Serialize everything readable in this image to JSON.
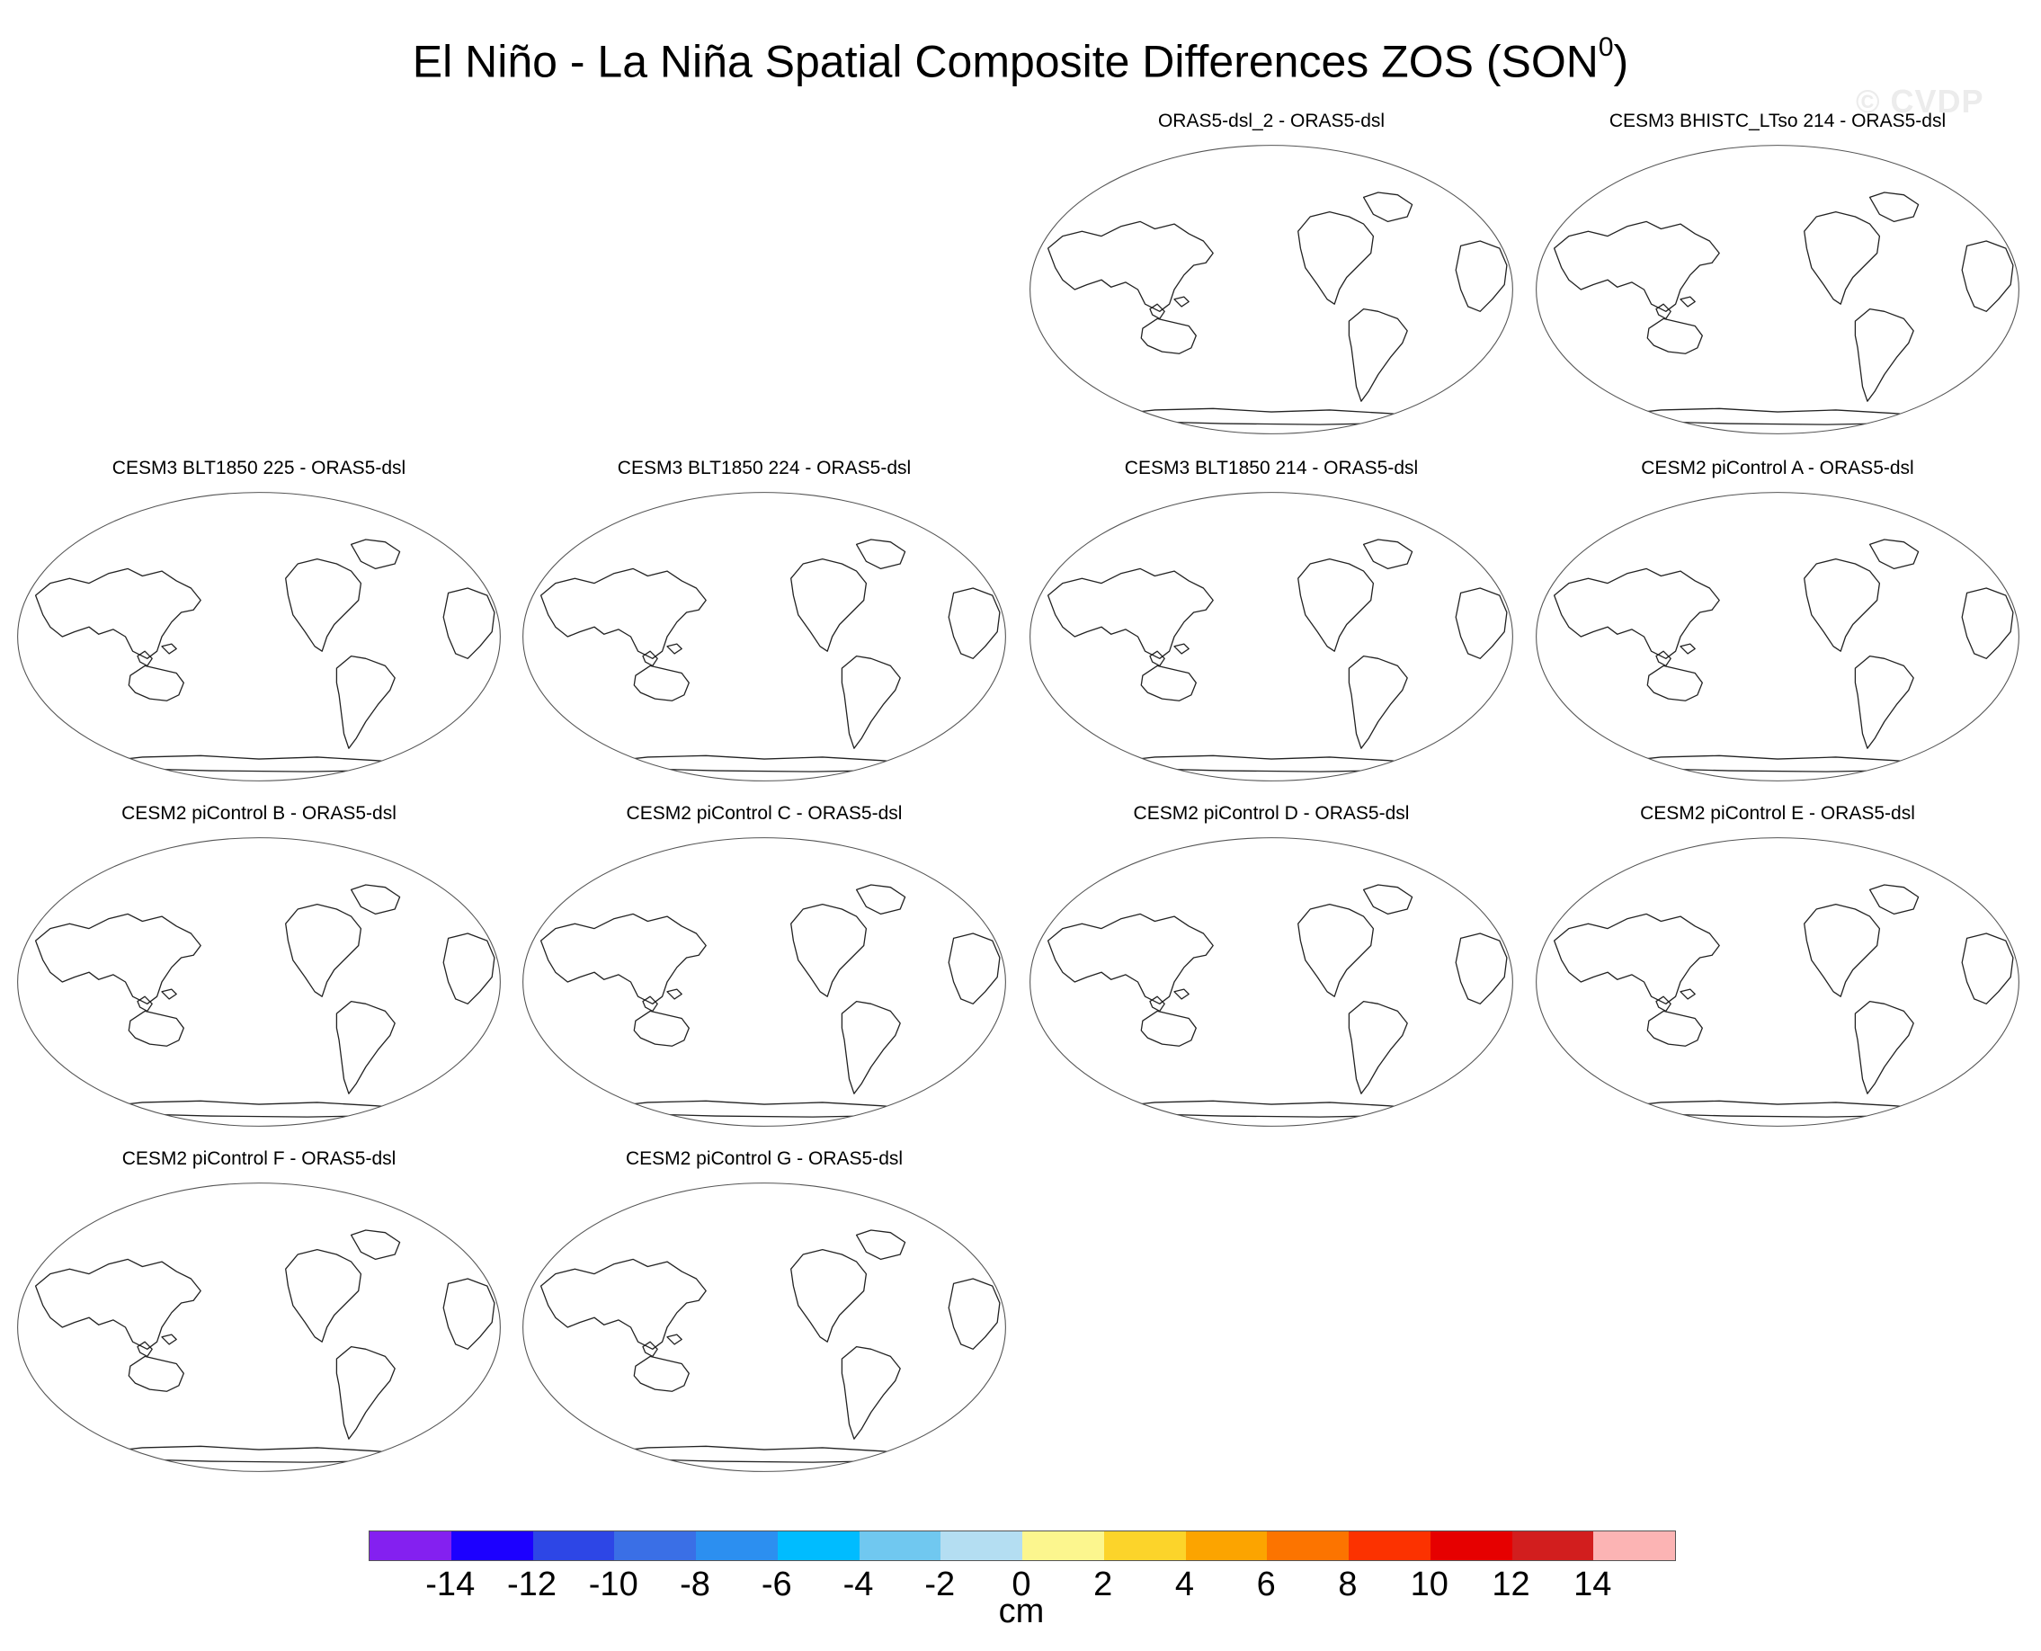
{
  "chart_data": {
    "type": "map",
    "title": "El Niño - La Niña Spatial Composite Differences ZOS (SON",
    "title_superscript": "0",
    "title_suffix": ")",
    "watermark": "© CVDP",
    "panels": [
      {
        "title": "ORAS5-dsl_2 - ORAS5-dsl",
        "row": 0,
        "col": 2
      },
      {
        "title": "CESM3 BHISTC_LTso 214 - ORAS5-dsl",
        "row": 0,
        "col": 3
      },
      {
        "title": "CESM3 BLT1850 225 - ORAS5-dsl",
        "row": 1,
        "col": 0
      },
      {
        "title": "CESM3 BLT1850 224 - ORAS5-dsl",
        "row": 1,
        "col": 1
      },
      {
        "title": "CESM3 BLT1850 214 - ORAS5-dsl",
        "row": 1,
        "col": 2
      },
      {
        "title": "CESM2 piControl A - ORAS5-dsl",
        "row": 1,
        "col": 3
      },
      {
        "title": "CESM2 piControl B - ORAS5-dsl",
        "row": 2,
        "col": 0
      },
      {
        "title": "CESM2 piControl C - ORAS5-dsl",
        "row": 2,
        "col": 1
      },
      {
        "title": "CESM2 piControl D - ORAS5-dsl",
        "row": 2,
        "col": 2
      },
      {
        "title": "CESM2 piControl E - ORAS5-dsl",
        "row": 2,
        "col": 3
      },
      {
        "title": "CESM2 piControl F - ORAS5-dsl",
        "row": 3,
        "col": 0
      },
      {
        "title": "CESM2 piControl G - ORAS5-dsl",
        "row": 3,
        "col": 1
      }
    ],
    "colorbar": {
      "units": "cm",
      "tick_labels": [
        "-14",
        "-12",
        "-10",
        "-8",
        "-6",
        "-4",
        "-2",
        "0",
        "2",
        "4",
        "6",
        "8",
        "10",
        "12",
        "14"
      ],
      "colors": [
        "#8420f0",
        "#1c00ff",
        "#2d46e6",
        "#3a6fe6",
        "#2c8ff0",
        "#00bcff",
        "#70c8f0",
        "#b4def2",
        "#fcf68e",
        "#fcd42a",
        "#fca400",
        "#fc7400",
        "#fc3200",
        "#e60000",
        "#d21e1e",
        "#fcb4b4"
      ]
    }
  }
}
